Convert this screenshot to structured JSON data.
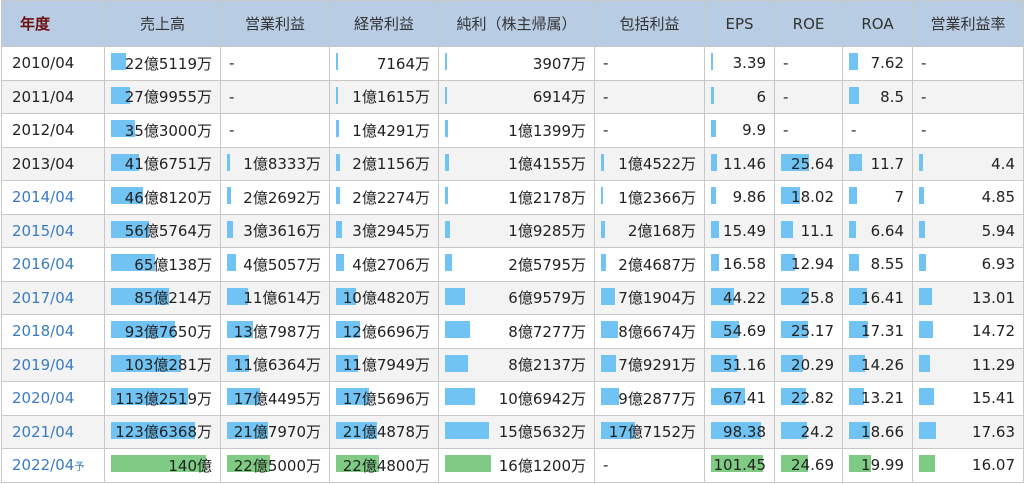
{
  "headers": [
    "年度",
    "売上高",
    "営業利益",
    "経常利益",
    "純利（株主帰属）",
    "包括利益",
    "EPS",
    "ROE",
    "ROA",
    "営業利益率"
  ],
  "colors": {
    "header_bg": "#b8cce4",
    "bar_actual": "#71c3f3",
    "bar_forecast": "#7fcb83",
    "link": "#3a7cc0"
  },
  "forecast_mark": "予",
  "rows": [
    {
      "year": "2010/04",
      "link": false,
      "cells": [
        [
          "22億5119万",
          22.5119
        ],
        [
          "-",
          null
        ],
        [
          "7164万",
          0.7164
        ],
        [
          "3907万",
          0.3907
        ],
        [
          "-",
          null
        ],
        [
          "3.39",
          3.39
        ],
        [
          "-",
          null
        ],
        [
          "7.62",
          7.62
        ],
        [
          "-",
          null
        ]
      ]
    },
    {
      "year": "2011/04",
      "link": false,
      "cells": [
        [
          "27億9955万",
          27.9955
        ],
        [
          "-",
          null
        ],
        [
          "1億1615万",
          1.1615
        ],
        [
          "6914万",
          0.6914
        ],
        [
          "-",
          null
        ],
        [
          "6",
          6
        ],
        [
          "-",
          null
        ],
        [
          "8.5",
          8.5
        ],
        [
          "-",
          null
        ]
      ]
    },
    {
      "year": "2012/04",
      "link": false,
      "cells": [
        [
          "35億3000万",
          35.3
        ],
        [
          "-",
          null
        ],
        [
          "1億4291万",
          1.4291
        ],
        [
          "1億1399万",
          1.1399
        ],
        [
          "-",
          null
        ],
        [
          "9.9",
          9.9
        ],
        [
          "-",
          null
        ],
        [
          "-",
          null
        ],
        [
          "-",
          null
        ]
      ]
    },
    {
      "year": "2013/04",
      "link": false,
      "cells": [
        [
          "41億6751万",
          41.6751
        ],
        [
          "1億8333万",
          1.8333
        ],
        [
          "2億1156万",
          2.1156
        ],
        [
          "1億4155万",
          1.4155
        ],
        [
          "1億4522万",
          1.4522
        ],
        [
          "11.46",
          11.46
        ],
        [
          "25.64",
          25.64
        ],
        [
          "11.7",
          11.7
        ],
        [
          "4.4",
          4.4
        ]
      ]
    },
    {
      "year": "2014/04",
      "link": true,
      "cells": [
        [
          "46億8120万",
          46.812
        ],
        [
          "2億2692万",
          2.2692
        ],
        [
          "2億2274万",
          2.2274
        ],
        [
          "1億2178万",
          1.2178
        ],
        [
          "1億2366万",
          1.2366
        ],
        [
          "9.86",
          9.86
        ],
        [
          "18.02",
          18.02
        ],
        [
          "7",
          7
        ],
        [
          "4.85",
          4.85
        ]
      ]
    },
    {
      "year": "2015/04",
      "link": true,
      "cells": [
        [
          "56億5764万",
          56.5764
        ],
        [
          "3億3616万",
          3.3616
        ],
        [
          "3億2945万",
          3.2945
        ],
        [
          "1億9285万",
          1.9285
        ],
        [
          "2億168万",
          2.0168
        ],
        [
          "15.49",
          15.49
        ],
        [
          "11.1",
          11.1
        ],
        [
          "6.64",
          6.64
        ],
        [
          "5.94",
          5.94
        ]
      ]
    },
    {
      "year": "2016/04",
      "link": true,
      "cells": [
        [
          "65億138万",
          65.0138
        ],
        [
          "4億5057万",
          4.5057
        ],
        [
          "4億2706万",
          4.2706
        ],
        [
          "2億5795万",
          2.5795
        ],
        [
          "2億4687万",
          2.4687
        ],
        [
          "16.58",
          16.58
        ],
        [
          "12.94",
          12.94
        ],
        [
          "8.55",
          8.55
        ],
        [
          "6.93",
          6.93
        ]
      ]
    },
    {
      "year": "2017/04",
      "link": true,
      "cells": [
        [
          "85億214万",
          85.0214
        ],
        [
          "11億614万",
          11.0614
        ],
        [
          "10億4820万",
          10.482
        ],
        [
          "6億9579万",
          6.9579
        ],
        [
          "7億1904万",
          7.1904
        ],
        [
          "44.22",
          44.22
        ],
        [
          "25.8",
          25.8
        ],
        [
          "16.41",
          16.41
        ],
        [
          "13.01",
          13.01
        ]
      ]
    },
    {
      "year": "2018/04",
      "link": true,
      "cells": [
        [
          "93億7650万",
          93.765
        ],
        [
          "13億7987万",
          13.7987
        ],
        [
          "12億6696万",
          12.6696
        ],
        [
          "8億7277万",
          8.7277
        ],
        [
          "8億6674万",
          8.6674
        ],
        [
          "54.69",
          54.69
        ],
        [
          "25.17",
          25.17
        ],
        [
          "17.31",
          17.31
        ],
        [
          "14.72",
          14.72
        ]
      ]
    },
    {
      "year": "2019/04",
      "link": true,
      "cells": [
        [
          "103億281万",
          103.0281
        ],
        [
          "11億6364万",
          11.6364
        ],
        [
          "11億7949万",
          11.7949
        ],
        [
          "8億2137万",
          8.2137
        ],
        [
          "7億9291万",
          7.9291
        ],
        [
          "51.16",
          51.16
        ],
        [
          "20.29",
          20.29
        ],
        [
          "14.26",
          14.26
        ],
        [
          "11.29",
          11.29
        ]
      ]
    },
    {
      "year": "2020/04",
      "link": true,
      "cells": [
        [
          "113億2519万",
          113.2519
        ],
        [
          "17億4495万",
          17.4495
        ],
        [
          "17億5696万",
          17.5696
        ],
        [
          "10億6942万",
          10.6942
        ],
        [
          "9億2877万",
          9.2877
        ],
        [
          "67.41",
          67.41
        ],
        [
          "22.82",
          22.82
        ],
        [
          "13.21",
          13.21
        ],
        [
          "15.41",
          15.41
        ]
      ]
    },
    {
      "year": "2021/04",
      "link": true,
      "cells": [
        [
          "123億6368万",
          123.6368
        ],
        [
          "21億7970万",
          21.797
        ],
        [
          "21億4878万",
          21.4878
        ],
        [
          "15億5632万",
          15.5632
        ],
        [
          "17億7152万",
          17.7152
        ],
        [
          "98.38",
          98.38
        ],
        [
          "24.2",
          24.2
        ],
        [
          "18.66",
          18.66
        ],
        [
          "17.63",
          17.63
        ]
      ]
    },
    {
      "year": "2022/04",
      "link": true,
      "forecast": true,
      "cells": [
        [
          "140億",
          140
        ],
        [
          "22億5000万",
          22.5
        ],
        [
          "22億4800万",
          22.48
        ],
        [
          "16億1200万",
          16.12
        ],
        [
          "-",
          null
        ],
        [
          "101.45",
          101.45
        ],
        [
          "24.69",
          24.69
        ],
        [
          "19.99",
          19.99
        ],
        [
          "16.07",
          16.07
        ]
      ]
    }
  ]
}
